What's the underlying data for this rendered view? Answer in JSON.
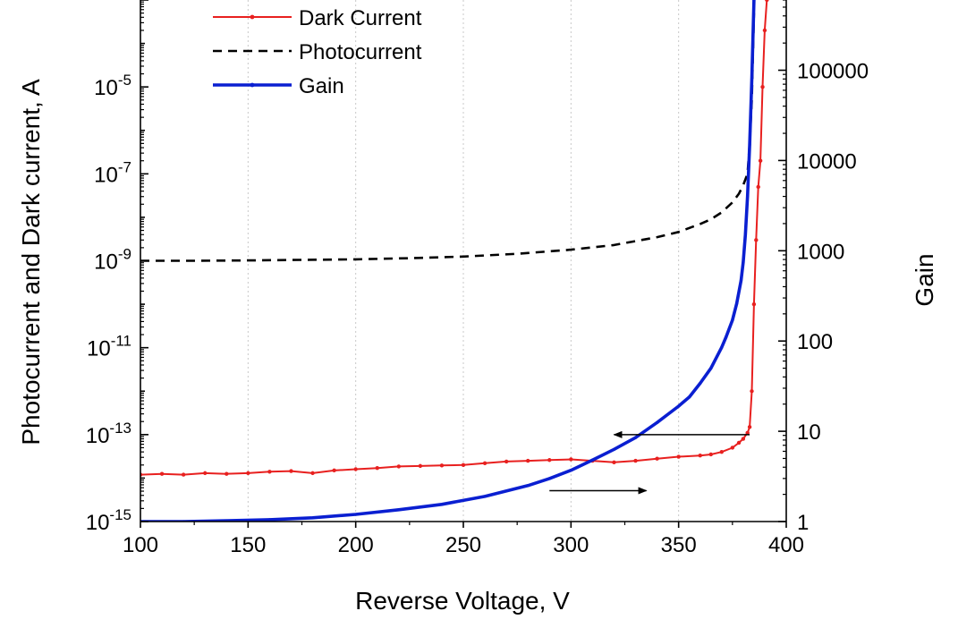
{
  "chart_data": {
    "type": "line",
    "xlabel": "Reverse Voltage, V",
    "ylabel_left": "Photocurrent and Dark current, A",
    "ylabel_right": "Gain",
    "xlim": [
      100,
      400
    ],
    "ylim_left": [
      1e-15,
      0.001
    ],
    "ylim_right": [
      1,
      600000
    ],
    "yscale_left": "log",
    "yscale_right": "log",
    "x_ticks": [
      100,
      150,
      200,
      250,
      300,
      350,
      400
    ],
    "y_left_ticks": [
      {
        "value": 1e-15,
        "base": "10",
        "exp": "-15"
      },
      {
        "value": 1e-13,
        "base": "10",
        "exp": "-13"
      },
      {
        "value": 1e-11,
        "base": "10",
        "exp": "-11"
      },
      {
        "value": 1e-09,
        "base": "10",
        "exp": "-9"
      },
      {
        "value": 1e-07,
        "base": "10",
        "exp": "-7"
      },
      {
        "value": 1e-05,
        "base": "10",
        "exp": "-5"
      }
    ],
    "y_right_ticks": [
      {
        "value": 1,
        "label": "1"
      },
      {
        "value": 10,
        "label": "10"
      },
      {
        "value": 100,
        "label": "100"
      },
      {
        "value": 1000,
        "label": "1000"
      },
      {
        "value": 10000,
        "label": "10000"
      },
      {
        "value": 100000,
        "label": "100000"
      }
    ],
    "grid": "vertical-dotted",
    "legend_position": "top-left",
    "annotations": [
      {
        "type": "arrow",
        "from": [
          383,
          1e-13
        ],
        "to": [
          320,
          1e-13
        ],
        "axis": "left",
        "meaning": "dark current and photocurrent read on left axis"
      },
      {
        "type": "arrow",
        "from": [
          290,
          2.2
        ],
        "to": [
          335,
          2.2
        ],
        "axis": "right",
        "meaning": "gain read on right axis"
      }
    ],
    "series": [
      {
        "name": "Dark Current",
        "axis": "left",
        "color": "#e8201f",
        "style": "solid",
        "marker": "dot",
        "x": [
          100,
          110,
          120,
          130,
          140,
          150,
          160,
          170,
          180,
          190,
          200,
          210,
          220,
          230,
          240,
          250,
          260,
          270,
          280,
          290,
          300,
          310,
          320,
          330,
          340,
          350,
          360,
          365,
          370,
          375,
          378,
          380,
          382,
          383,
          384,
          385,
          386,
          387,
          388,
          389,
          390,
          391
        ],
        "y": [
          1.2e-14,
          1.25e-14,
          1.2e-14,
          1.3e-14,
          1.25e-14,
          1.3e-14,
          1.4e-14,
          1.45e-14,
          1.3e-14,
          1.5e-14,
          1.6e-14,
          1.7e-14,
          1.85e-14,
          1.9e-14,
          1.95e-14,
          2e-14,
          2.2e-14,
          2.4e-14,
          2.5e-14,
          2.6e-14,
          2.7e-14,
          2.5e-14,
          2.3e-14,
          2.5e-14,
          2.8e-14,
          3.1e-14,
          3.3e-14,
          3.5e-14,
          4e-14,
          5e-14,
          6.5e-14,
          8e-14,
          1.1e-13,
          1.5e-13,
          1e-12,
          1e-10,
          3e-09,
          5e-08,
          2e-07,
          1e-05,
          0.0002,
          0.001
        ]
      },
      {
        "name": "Photocurrent",
        "axis": "left",
        "color": "#000000",
        "style": "dashed",
        "x": [
          100,
          125,
          150,
          175,
          200,
          225,
          250,
          275,
          300,
          320,
          340,
          350,
          360,
          365,
          370,
          375,
          378,
          380,
          382,
          383,
          384,
          385
        ],
        "y": [
          1e-09,
          1e-09,
          1.02e-09,
          1.05e-09,
          1.08e-09,
          1.15e-09,
          1.25e-09,
          1.45e-09,
          1.8e-09,
          2.3e-09,
          3.5e-09,
          4.6e-09,
          7e-09,
          9e-09,
          1.3e-08,
          2.2e-08,
          3.5e-08,
          5.5e-08,
          1e-07,
          5e-07,
          5e-06,
          0.0005
        ]
      },
      {
        "name": "Gain",
        "axis": "right",
        "color": "#0a1fd1",
        "style": "solid",
        "marker": "small-dot",
        "x": [
          100,
          120,
          140,
          160,
          180,
          200,
          220,
          240,
          260,
          280,
          290,
          300,
          310,
          320,
          330,
          340,
          350,
          355,
          360,
          365,
          370,
          372,
          375,
          377,
          379,
          380,
          381,
          382,
          383,
          384,
          385
        ],
        "y": [
          1,
          1,
          1.02,
          1.05,
          1.1,
          1.2,
          1.35,
          1.55,
          1.9,
          2.5,
          3.0,
          3.7,
          4.8,
          6.3,
          8.5,
          12.5,
          19,
          24,
          34,
          50,
          85,
          110,
          170,
          260,
          470,
          750,
          1500,
          4000,
          15000,
          80000,
          600000
        ]
      }
    ]
  }
}
